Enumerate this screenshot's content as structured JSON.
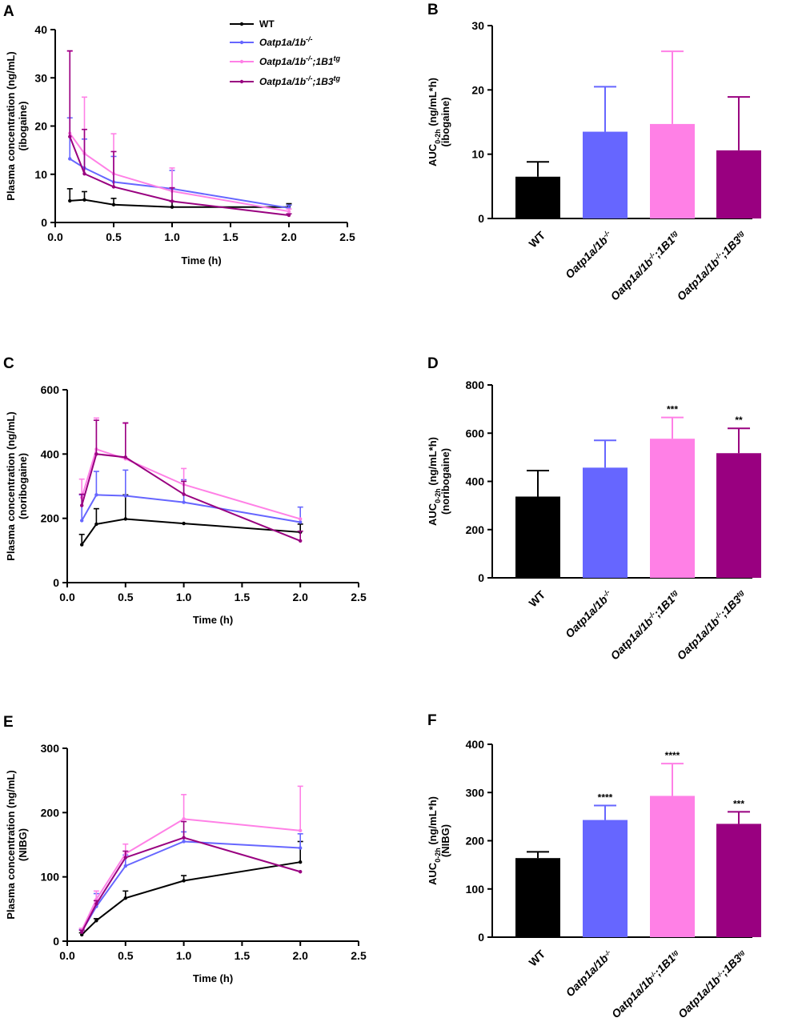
{
  "colors": {
    "WT": "#000000",
    "KO": "#6666ff",
    "B1": "#ff80e6",
    "B3": "#990080"
  },
  "legend": [
    {
      "label": "WT",
      "color": "#000000",
      "base": "WT",
      "sup": ""
    },
    {
      "label": "Oatp1a/1b-/-",
      "color": "#6666ff",
      "base": "Oatp1a/1b",
      "sup": "-/-"
    },
    {
      "label": "Oatp1a/1b-/-;1B1tg",
      "color": "#ff80e6",
      "base": "Oatp1a/1b",
      "sup": "-/-",
      "mid": ";1B1",
      "sup2": "tg"
    },
    {
      "label": "Oatp1a/1b-/-;1B3tg",
      "color": "#990080",
      "base": "Oatp1a/1b",
      "sup": "-/-",
      "mid": ";1B3",
      "sup2": "tg"
    }
  ],
  "chart_data": [
    {
      "panel": "A",
      "type": "line",
      "title": "",
      "xlabel": "Time (h)",
      "ylabel": "Plasma concentration (ng/mL)",
      "ylabel2": "(ibogaine)",
      "xlim": [
        0,
        2.5
      ],
      "xticks": [
        0.0,
        0.5,
        1.0,
        1.5,
        2.0,
        2.5
      ],
      "ylim": [
        0,
        40
      ],
      "yticks": [
        0,
        10,
        20,
        30,
        40
      ],
      "x": [
        0.125,
        0.25,
        0.5,
        1.0,
        2.0
      ],
      "series": [
        {
          "name": "WT",
          "color": "#000000",
          "values": [
            4.5,
            4.7,
            3.7,
            3.2,
            3.2
          ],
          "errors": [
            2.5,
            1.7,
            1.3,
            1.2,
            0.7
          ]
        },
        {
          "name": "Oatp1a/1b-/-",
          "color": "#6666ff",
          "values": [
            13.2,
            11.3,
            8.4,
            7.0,
            3.0
          ],
          "errors": [
            8.5,
            6.0,
            5.3,
            3.8,
            0.6
          ]
        },
        {
          "name": "Oatp1a/1b-/-;1B1tg",
          "color": "#ff80e6",
          "values": [
            18.5,
            14.3,
            10.1,
            6.5,
            2.3
          ],
          "errors": [
            17.0,
            11.7,
            8.3,
            4.8,
            0.5
          ]
        },
        {
          "name": "Oatp1a/1b-/-;1B3tg",
          "color": "#990080",
          "values": [
            17.8,
            10.1,
            7.4,
            4.4,
            1.5
          ],
          "errors": [
            17.8,
            9.2,
            7.3,
            2.8,
            0.3
          ]
        }
      ]
    },
    {
      "panel": "B",
      "type": "bar",
      "ylabel": "AUC",
      "ylabel_sub": "0-2h",
      "ylabel_unit": " (ng/mL*h)",
      "ylabel2": "(ibogaine)",
      "categories": [
        "WT",
        "Oatp1a/1b-/-",
        "Oatp1a/1b-/-;1B1tg",
        "Oatp1a/1b-/-;1B3tg"
      ],
      "colors": [
        "#000000",
        "#6666ff",
        "#ff80e6",
        "#990080"
      ],
      "values": [
        6.5,
        13.5,
        14.7,
        10.6
      ],
      "errors": [
        2.3,
        7.0,
        11.3,
        8.3
      ],
      "significance": [
        "",
        "",
        "",
        ""
      ],
      "ylim": [
        0,
        30
      ],
      "yticks": [
        0,
        10,
        20,
        30
      ]
    },
    {
      "panel": "C",
      "type": "line",
      "xlabel": "Time (h)",
      "ylabel": "Plasma concentration (ng/mL)",
      "ylabel2": "(noribogaine)",
      "xlim": [
        0,
        2.5
      ],
      "xticks": [
        0.0,
        0.5,
        1.0,
        1.5,
        2.0,
        2.5
      ],
      "ylim": [
        0,
        600
      ],
      "yticks": [
        0,
        200,
        400,
        600
      ],
      "x": [
        0.125,
        0.25,
        0.5,
        1.0,
        2.0
      ],
      "series": [
        {
          "name": "WT",
          "color": "#000000",
          "values": [
            118,
            182,
            198,
            184,
            157
          ],
          "errors": [
            32,
            48,
            75,
            0,
            25
          ]
        },
        {
          "name": "Oatp1a/1b-/-",
          "color": "#6666ff",
          "values": [
            193,
            273,
            270,
            250,
            188
          ],
          "errors": [
            80,
            73,
            80,
            70,
            47
          ]
        },
        {
          "name": "Oatp1a/1b-/-;1B1tg",
          "color": "#ff80e6",
          "values": [
            265,
            415,
            385,
            305,
            198
          ],
          "errors": [
            57,
            97,
            110,
            50,
            0
          ]
        },
        {
          "name": "Oatp1a/1b-/-;1B3tg",
          "color": "#990080",
          "values": [
            240,
            400,
            390,
            275,
            130
          ],
          "errors": [
            35,
            105,
            107,
            40,
            30
          ]
        }
      ]
    },
    {
      "panel": "D",
      "type": "bar",
      "ylabel": "AUC",
      "ylabel_sub": "0-2h",
      "ylabel_unit": " (ng/mL*h)",
      "ylabel2": "(noribogaine)",
      "categories": [
        "WT",
        "Oatp1a/1b-/-",
        "Oatp1a/1b-/-;1B1tg",
        "Oatp1a/1b-/-;1B3tg"
      ],
      "colors": [
        "#000000",
        "#6666ff",
        "#ff80e6",
        "#990080"
      ],
      "values": [
        337,
        457,
        577,
        517
      ],
      "errors": [
        108,
        113,
        88,
        103
      ],
      "significance": [
        "",
        "",
        "***",
        "**"
      ],
      "ylim": [
        0,
        800
      ],
      "yticks": [
        0,
        200,
        400,
        600,
        800
      ]
    },
    {
      "panel": "E",
      "type": "line",
      "xlabel": "Time (h)",
      "ylabel": "Plasma concentration (ng/mL)",
      "ylabel2": "(NIBG)",
      "xlim": [
        0,
        2.5
      ],
      "xticks": [
        0.0,
        0.5,
        1.0,
        1.5,
        2.0,
        2.5
      ],
      "ylim": [
        0,
        300
      ],
      "yticks": [
        0,
        100,
        200,
        300
      ],
      "x": [
        0.125,
        0.25,
        0.5,
        1.0,
        2.0
      ],
      "series": [
        {
          "name": "WT",
          "color": "#000000",
          "values": [
            10,
            32,
            67,
            94,
            123
          ],
          "errors": [
            3,
            3,
            11,
            8,
            32
          ]
        },
        {
          "name": "Oatp1a/1b-/-",
          "color": "#6666ff",
          "values": [
            15,
            54,
            117,
            155,
            145
          ],
          "errors": [
            3,
            20,
            17,
            15,
            22
          ]
        },
        {
          "name": "Oatp1a/1b-/-;1B1tg",
          "color": "#ff80e6",
          "values": [
            17,
            65,
            136,
            190,
            172
          ],
          "errors": [
            3,
            13,
            15,
            38,
            69
          ]
        },
        {
          "name": "Oatp1a/1b-/-;1B3tg",
          "color": "#990080",
          "values": [
            14,
            58,
            130,
            161,
            108
          ],
          "errors": [
            3,
            5,
            10,
            25,
            0
          ]
        }
      ]
    },
    {
      "panel": "F",
      "type": "bar",
      "ylabel": "AUC",
      "ylabel_sub": "0-2h",
      "ylabel_unit": " (ng/mL*h)",
      "ylabel2": "(NIBG)",
      "categories": [
        "WT",
        "Oatp1a/1b-/-",
        "Oatp1a/1b-/-;1B1tg",
        "Oatp1a/1b-/-;1B3tg"
      ],
      "colors": [
        "#000000",
        "#6666ff",
        "#ff80e6",
        "#990080"
      ],
      "values": [
        164,
        243,
        293,
        235
      ],
      "errors": [
        13,
        30,
        67,
        25
      ],
      "significance": [
        "",
        "****",
        "****",
        "***"
      ],
      "ylim": [
        0,
        400
      ],
      "yticks": [
        0,
        100,
        200,
        300,
        400
      ]
    }
  ]
}
